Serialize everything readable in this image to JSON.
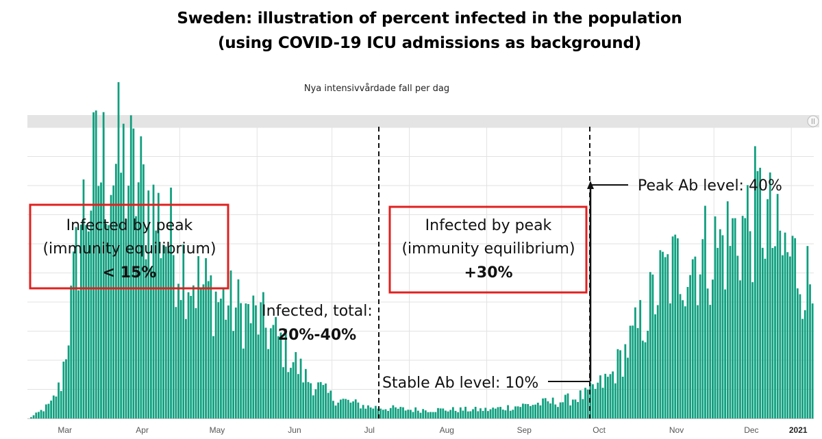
{
  "title_line1": "Sweden: illustration of percent infected in the population",
  "title_line2": "(using COVID-19 ICU admissions as background)",
  "subtitle": "Nya intensivvårdade fall per dag",
  "colors": {
    "bars": "#0e9f7e",
    "box_border": "#e0201f",
    "grid": "#e2e2e2",
    "navigator": "#e4e4e4"
  },
  "chart_data": {
    "type": "bar",
    "x_start": "2020-03-01",
    "x_end": "2021-01-09",
    "ylim": [
      0,
      100
    ],
    "grid": true,
    "x_ticks": [
      "Mar",
      "Apr",
      "May",
      "Jun",
      "Jul",
      "Aug",
      "Sep",
      "Oct",
      "Nov",
      "Dec",
      "2021"
    ],
    "series": [
      {
        "keyframes": [
          [
            "2020-03-01",
            0
          ],
          [
            "2020-03-05",
            2
          ],
          [
            "2020-03-10",
            5
          ],
          [
            "2020-03-14",
            12
          ],
          [
            "2020-03-18",
            38
          ],
          [
            "2020-03-22",
            68
          ],
          [
            "2020-03-28",
            84
          ],
          [
            "2020-04-03",
            88
          ],
          [
            "2020-04-08",
            86
          ],
          [
            "2020-04-15",
            78
          ],
          [
            "2020-04-22",
            68
          ],
          [
            "2020-04-30",
            56
          ],
          [
            "2020-05-08",
            46
          ],
          [
            "2020-05-15",
            42
          ],
          [
            "2020-05-22",
            38
          ],
          [
            "2020-06-01",
            34
          ],
          [
            "2020-06-10",
            26
          ],
          [
            "2020-06-20",
            14
          ],
          [
            "2020-07-01",
            7
          ],
          [
            "2020-07-15",
            4
          ],
          [
            "2020-08-01",
            3
          ],
          [
            "2020-09-01",
            3
          ],
          [
            "2020-09-20",
            5
          ],
          [
            "2020-10-01",
            6
          ],
          [
            "2020-10-10",
            8
          ],
          [
            "2020-10-20",
            14
          ],
          [
            "2020-11-01",
            32
          ],
          [
            "2020-11-10",
            48
          ],
          [
            "2020-11-20",
            55
          ],
          [
            "2020-12-01",
            58
          ],
          [
            "2020-12-10",
            64
          ],
          [
            "2020-12-20",
            72
          ],
          [
            "2020-12-26",
            58
          ],
          [
            "2021-01-01",
            55
          ],
          [
            "2021-01-09",
            45
          ]
        ]
      }
    ],
    "annotations": [
      {
        "line1": "Infected by peak",
        "line2": "(immunity equilibrium)",
        "value": "< 15%"
      },
      {
        "line1": "Infected by peak",
        "line2": "(immunity equilibrium)",
        "value": "+30%"
      },
      {
        "line1": "Infected, total:",
        "value": "20%-40%"
      },
      {
        "text": "Stable Ab level: 10%"
      },
      {
        "text": "Peak Ab level: 40%"
      }
    ]
  }
}
